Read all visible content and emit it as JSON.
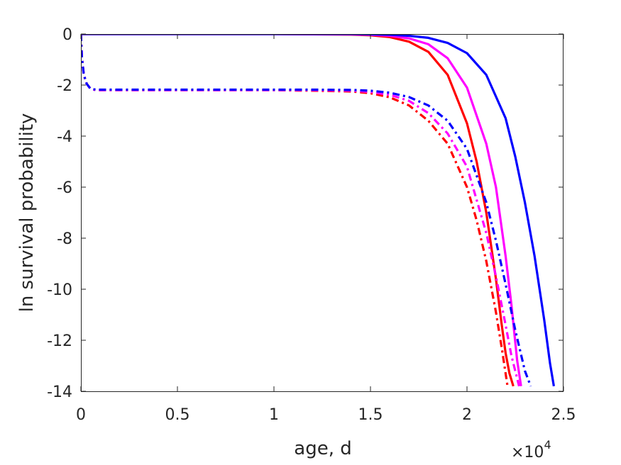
{
  "chart_data": {
    "type": "line",
    "title": "",
    "xlabel": "age, d",
    "ylabel": "ln survival probability",
    "x_exponent_label": "×10",
    "x_exponent_power": "4",
    "xlim": [
      0,
      25000
    ],
    "ylim": [
      -14,
      0
    ],
    "xticks": [
      0,
      5000,
      10000,
      15000,
      20000,
      25000
    ],
    "xtick_labels": [
      "0",
      "0.5",
      "1",
      "1.5",
      "2",
      "2.5"
    ],
    "yticks": [
      0,
      -2,
      -4,
      -6,
      -8,
      -10,
      -12,
      -14
    ],
    "ytick_labels": [
      "0",
      "-2",
      "-4",
      "-6",
      "-8",
      "-10",
      "-12",
      "-14"
    ],
    "grid": false,
    "legend": "none",
    "colors": {
      "red": "#ff0000",
      "magenta": "#ff00ff",
      "blue": "#0000ff"
    },
    "series": [
      {
        "color": "#ff0000",
        "style": "solid",
        "x": [
          0,
          5000,
          10000,
          14000,
          15000,
          16000,
          17000,
          18000,
          19000,
          20000,
          20500,
          21000,
          21500,
          21800,
          22000,
          22200,
          22400
        ],
        "y": [
          0,
          0,
          0,
          -0.02,
          -0.05,
          -0.12,
          -0.3,
          -0.7,
          -1.6,
          -3.5,
          -5.0,
          -7.0,
          -9.6,
          -11.4,
          -12.5,
          -13.3,
          -13.8
        ]
      },
      {
        "color": "#ff00ff",
        "style": "solid",
        "x": [
          0,
          5000,
          10000,
          14000,
          15000,
          16000,
          17000,
          18000,
          19000,
          20000,
          21000,
          21500,
          22000,
          22300,
          22600,
          22800
        ],
        "y": [
          0,
          0,
          0,
          -0.01,
          -0.03,
          -0.07,
          -0.17,
          -0.4,
          -0.95,
          -2.1,
          -4.3,
          -6.0,
          -8.7,
          -10.6,
          -12.8,
          -13.8
        ]
      },
      {
        "color": "#0000ff",
        "style": "solid",
        "x": [
          0,
          5000,
          10000,
          14000,
          15000,
          16000,
          17000,
          18000,
          19000,
          20000,
          21000,
          22000,
          22500,
          23000,
          23500,
          24000,
          24300,
          24500
        ],
        "y": [
          0,
          0,
          0,
          0,
          -0.01,
          -0.03,
          -0.07,
          -0.15,
          -0.35,
          -0.75,
          -1.6,
          -3.3,
          -4.8,
          -6.6,
          -8.7,
          -11.2,
          -12.9,
          -13.8
        ]
      },
      {
        "color": "#ff0000",
        "style": "dashdot",
        "x": [
          0,
          50,
          150,
          300,
          500,
          800,
          2000,
          5000,
          10000,
          12000,
          14000,
          15000,
          16000,
          17000,
          18000,
          19000,
          20000,
          20500,
          21000,
          21500,
          21800,
          22100
        ],
        "y": [
          0,
          -0.9,
          -1.6,
          -1.95,
          -2.15,
          -2.2,
          -2.2,
          -2.2,
          -2.2,
          -2.22,
          -2.25,
          -2.32,
          -2.48,
          -2.8,
          -3.4,
          -4.3,
          -6.0,
          -7.3,
          -8.9,
          -10.9,
          -12.3,
          -13.8
        ]
      },
      {
        "color": "#ff00ff",
        "style": "dashdot",
        "x": [
          0,
          50,
          150,
          300,
          500,
          800,
          2000,
          5000,
          10000,
          12000,
          14000,
          15000,
          16000,
          17000,
          18000,
          19000,
          20000,
          21000,
          21500,
          22000,
          22300,
          22700
        ],
        "y": [
          0,
          -0.9,
          -1.6,
          -1.95,
          -2.15,
          -2.2,
          -2.2,
          -2.2,
          -2.2,
          -2.2,
          -2.22,
          -2.27,
          -2.38,
          -2.62,
          -3.1,
          -3.9,
          -5.2,
          -7.8,
          -9.5,
          -11.4,
          -12.6,
          -13.8
        ]
      },
      {
        "color": "#0000ff",
        "style": "dashdot",
        "x": [
          0,
          50,
          150,
          300,
          500,
          800,
          2000,
          5000,
          10000,
          12000,
          14000,
          15000,
          16000,
          17000,
          18000,
          19000,
          20000,
          21000,
          21500,
          22000,
          22500,
          23000,
          23300
        ],
        "y": [
          0,
          -0.9,
          -1.6,
          -1.95,
          -2.15,
          -2.18,
          -2.18,
          -2.18,
          -2.18,
          -2.18,
          -2.19,
          -2.22,
          -2.3,
          -2.47,
          -2.8,
          -3.4,
          -4.5,
          -6.6,
          -8.1,
          -9.8,
          -11.6,
          -13.2,
          -13.8
        ]
      }
    ]
  }
}
